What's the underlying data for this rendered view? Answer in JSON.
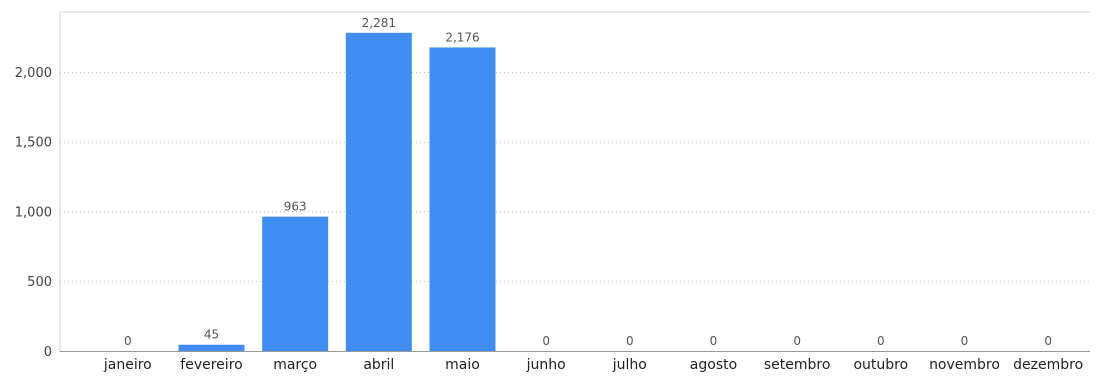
{
  "chart_data": {
    "type": "bar",
    "title": "",
    "xlabel": "",
    "ylabel": "",
    "categories": [
      "janeiro",
      "fevereiro",
      "março",
      "abril",
      "maio",
      "junho",
      "julho",
      "agosto",
      "setembro",
      "outubro",
      "novembro",
      "dezembro"
    ],
    "values": [
      0,
      45,
      963,
      2281,
      2176,
      0,
      0,
      0,
      0,
      0,
      0,
      0
    ],
    "data_labels": [
      "0",
      "45",
      "963",
      "2,281",
      "2,176",
      "0",
      "0",
      "0",
      "0",
      "0",
      "0",
      "0"
    ],
    "ylim": [
      0,
      2430
    ],
    "yticks": [
      0,
      500,
      1000,
      1500,
      2000
    ],
    "ytick_labels": [
      "0",
      "500",
      "1,000",
      "1,500",
      "2,000"
    ],
    "grid": true,
    "legend": "none",
    "colors": {
      "bar": "#418CF0",
      "grid": "#c8c8c8",
      "axis": "#999999",
      "frame": "#d6d6d6"
    }
  }
}
